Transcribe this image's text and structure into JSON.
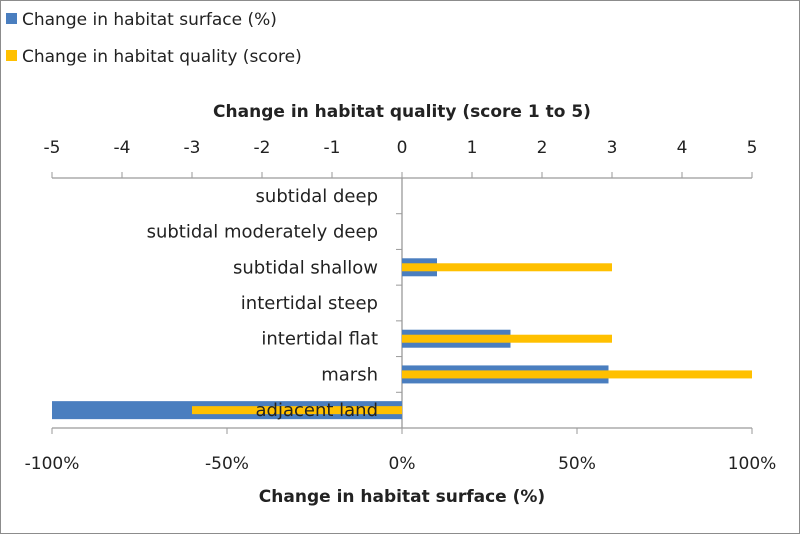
{
  "chart_data": {
    "type": "bar",
    "orientation": "horizontal",
    "categories": [
      "subtidal deep",
      "subtidal moderately deep",
      "subtidal shallow",
      "intertidal steep",
      "intertidal flat",
      "marsh",
      "adjacent land"
    ],
    "series": [
      {
        "name": "Change in habitat surface (%)",
        "axis": "bottom",
        "color": "#4a7ebf",
        "values": [
          null,
          null,
          10,
          null,
          31,
          59,
          -100
        ]
      },
      {
        "name": "Change in habitat quality (score)",
        "axis": "top",
        "color": "#ffc000",
        "values": [
          null,
          null,
          3,
          null,
          3,
          5,
          -3
        ]
      }
    ],
    "top_axis": {
      "title": "Change in habitat quality (score 1 to 5)",
      "range": [
        -5,
        5
      ],
      "ticks": [
        "-5",
        "-4",
        "-3",
        "-2",
        "-1",
        "0",
        "1",
        "2",
        "3",
        "4",
        "5"
      ]
    },
    "bottom_axis": {
      "title": "Change in habitat surface (%)",
      "range": [
        -100,
        100
      ],
      "ticks": [
        "-100%",
        "-50%",
        "0%",
        "50%",
        "100%"
      ]
    },
    "legend": {
      "placement": "top-left"
    },
    "grid": false
  }
}
